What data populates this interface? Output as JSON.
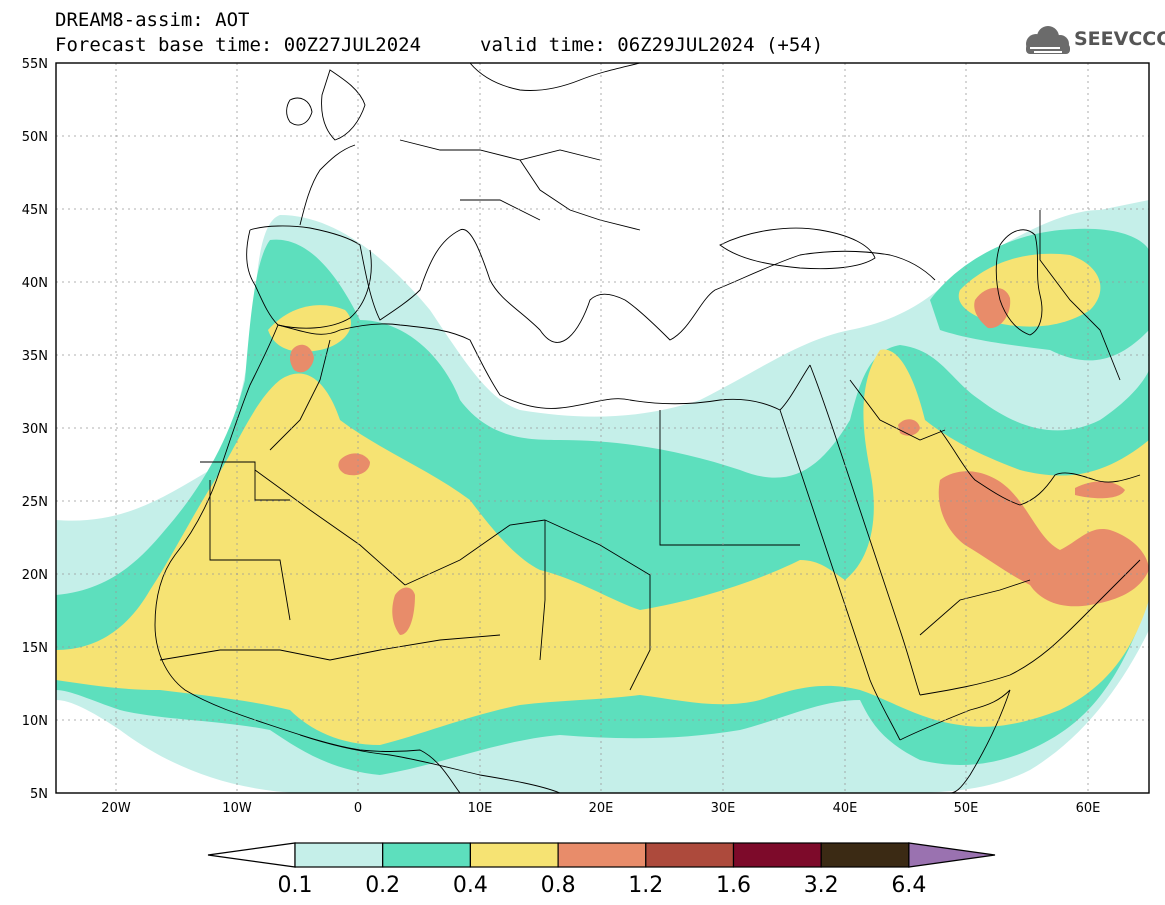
{
  "header": {
    "title": "DREAM8-assim: AOT",
    "base_time": "Forecast base time: 00Z27JUL2024",
    "valid_time": "valid time: 06Z29JUL2024 (+54)",
    "logo_text": "SEEVCCC"
  },
  "map": {
    "lon_range": [
      -25,
      65
    ],
    "lat_range": [
      5,
      55
    ],
    "lat_labels": [
      "55N",
      "50N",
      "45N",
      "40N",
      "35N",
      "30N",
      "25N",
      "20N",
      "15N",
      "10N",
      "5N"
    ],
    "lon_labels": [
      "20W",
      "10W",
      "0",
      "10E",
      "20E",
      "30E",
      "40E",
      "50E",
      "60E"
    ]
  },
  "colorbar": {
    "bins": [
      {
        "color": "#c5efe9"
      },
      {
        "color": "#5ddfbd"
      },
      {
        "color": "#f6e373"
      },
      {
        "color": "#e88c6a"
      },
      {
        "color": "#ad4a3c"
      },
      {
        "color": "#7d0a2a"
      },
      {
        "color": "#3b2a14"
      }
    ],
    "low_arrow_color": "#ffffff",
    "high_arrow_color": "#9a72b0",
    "labels": [
      "0.1",
      "0.2",
      "0.4",
      "0.8",
      "1.2",
      "1.6",
      "3.2",
      "6.4"
    ]
  },
  "legend_colors": {
    "c1": "#c5efe9",
    "c2": "#5ddfbd",
    "c3": "#f6e373",
    "c4": "#e88c6a"
  }
}
